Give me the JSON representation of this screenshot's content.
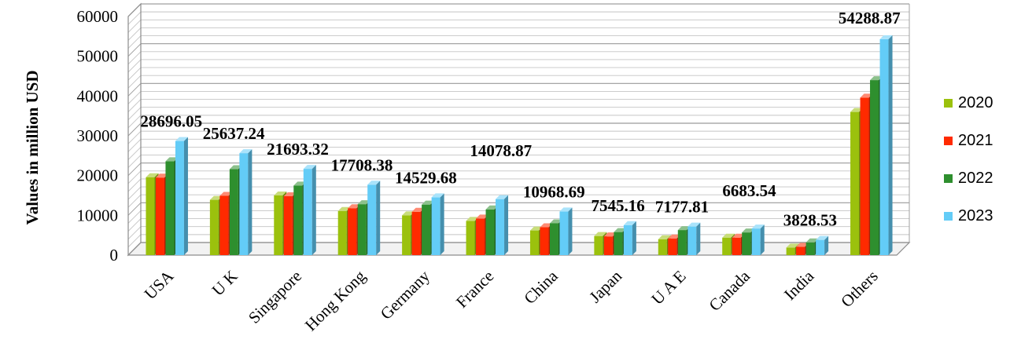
{
  "chart_data": {
    "type": "bar",
    "title": "",
    "xlabel": "",
    "ylabel": "Values in million USD",
    "ylim": [
      0,
      60000
    ],
    "yticks": [
      0,
      10000,
      20000,
      30000,
      40000,
      50000,
      60000
    ],
    "grid": true,
    "legend_position": "right",
    "categories": [
      "USA",
      "U K",
      "Singapore",
      "Hong Kong",
      "Germany",
      "France",
      "China",
      "Japan",
      "U A E",
      "Canada",
      "India",
      "Others"
    ],
    "series": [
      {
        "name": "2020",
        "color": "#9bc10d",
        "values": [
          19600,
          13900,
          15000,
          11100,
          10000,
          8600,
          6200,
          4800,
          4000,
          4400,
          1900,
          36000
        ]
      },
      {
        "name": "2021",
        "color": "#ff2a00",
        "values": [
          19500,
          14900,
          14800,
          11800,
          10900,
          9200,
          7000,
          4700,
          4200,
          4400,
          2100,
          39600
        ]
      },
      {
        "name": "2022",
        "color": "#2e8f2e",
        "values": [
          23600,
          21600,
          17500,
          12800,
          12700,
          11500,
          8000,
          5800,
          6300,
          5700,
          3200,
          44000
        ]
      },
      {
        "name": "2023",
        "color": "#63ccf7",
        "values": [
          28696.05,
          25637.24,
          21693.32,
          17708.38,
          14529.68,
          14078.87,
          10968.69,
          7545.16,
          7177.81,
          6683.54,
          3828.53,
          54288.87
        ]
      }
    ],
    "data_labels": [
      "28696.05",
      "25637.24",
      "21693.32",
      "17708.38",
      "14529.68",
      "14078.87",
      "10968.69",
      "7545.16",
      "7177.81",
      "6683.54",
      "3828.53",
      "54288.87"
    ]
  }
}
